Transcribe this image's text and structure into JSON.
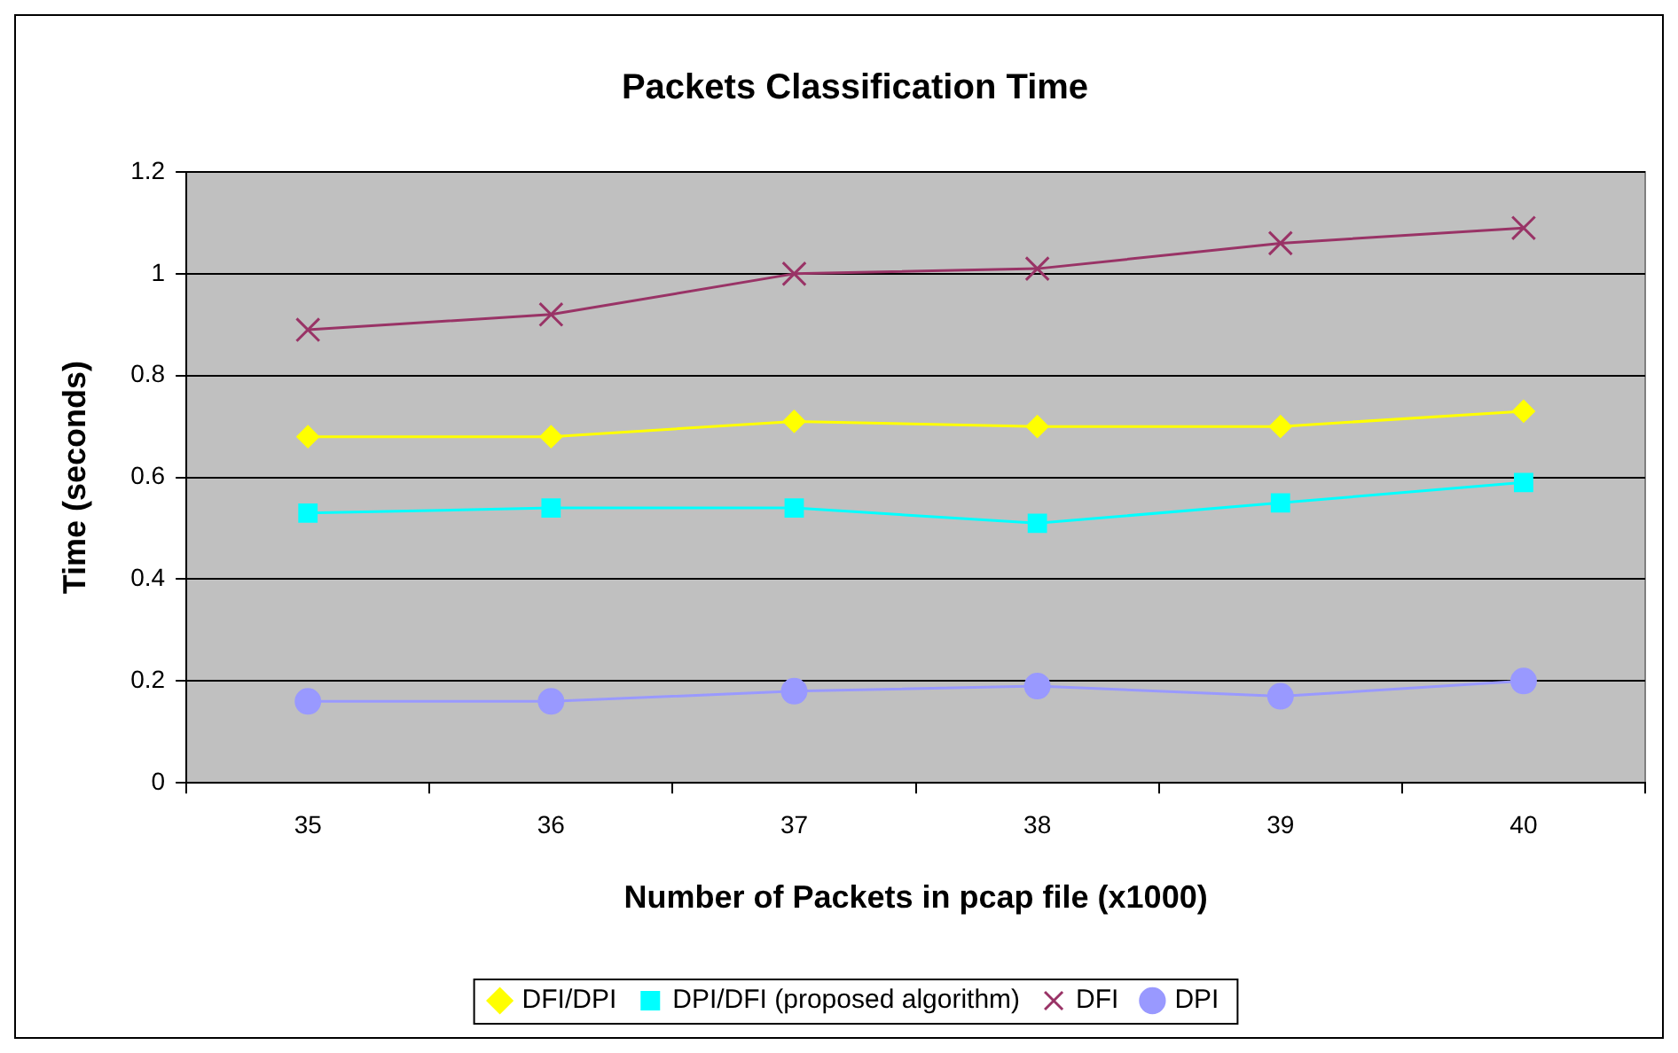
{
  "chart_data": {
    "type": "line",
    "title": "Packets Classification Time",
    "xlabel": "Number of Packets in pcap file (x1000)",
    "ylabel": "Time (seconds)",
    "categories": [
      "35",
      "36",
      "37",
      "38",
      "39",
      "40"
    ],
    "series": [
      {
        "name": "DFI/DPI",
        "color": "#ffff00",
        "marker": "diamond",
        "values": [
          0.68,
          0.68,
          0.71,
          0.7,
          0.7,
          0.73
        ]
      },
      {
        "name": "DPI/DFI (proposed algorithm)",
        "color": "#00ffff",
        "marker": "square",
        "values": [
          0.53,
          0.54,
          0.54,
          0.51,
          0.55,
          0.59
        ]
      },
      {
        "name": "DFI",
        "color": "#993366",
        "marker": "cross",
        "values": [
          0.89,
          0.92,
          1.0,
          1.01,
          1.06,
          1.09
        ]
      },
      {
        "name": "DPI",
        "color": "#9999ff",
        "marker": "circle",
        "values": [
          0.16,
          0.16,
          0.18,
          0.19,
          0.17,
          0.2
        ]
      }
    ],
    "ylim": [
      0,
      1.2
    ],
    "yticks": [
      0,
      0.2,
      0.4,
      0.6,
      0.8,
      1,
      1.2
    ],
    "grid": "y",
    "legend": "bottom"
  }
}
